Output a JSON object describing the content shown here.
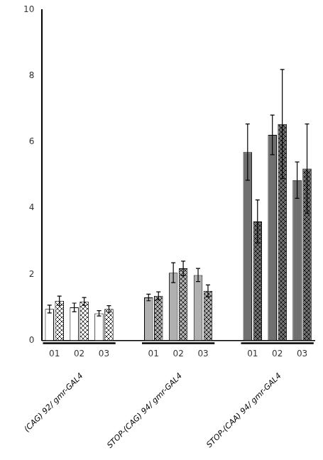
{
  "chart_data": {
    "type": "bar",
    "groups": [
      {
        "label": "(CAG) 92/ gmr-GAL4",
        "categories": [
          "01",
          "02",
          "03"
        ]
      },
      {
        "label": "STOP-(CAG) 94/ gmr-GAL4",
        "categories": [
          "01",
          "02",
          "03"
        ]
      },
      {
        "label": "STOP-(CAA) 94/ gmr-GAL4",
        "categories": [
          "01",
          "02",
          "03"
        ]
      }
    ],
    "series": [
      {
        "colors": [
          "white",
          "white",
          "white",
          "#b0b0b0",
          "#b0b0b0",
          "#b0b0b0",
          "#707070",
          "#707070",
          "#707070"
        ],
        "values": [
          0.95,
          1.0,
          0.82,
          1.3,
          2.05,
          1.98,
          5.7,
          6.22,
          4.85
        ],
        "errors": [
          0.12,
          0.13,
          0.08,
          0.1,
          0.3,
          0.2,
          0.85,
          0.6,
          0.55
        ]
      },
      {
        "colors": [
          "white",
          "white",
          "white",
          "#b0b0b0",
          "#b0b0b0",
          "#b0b0b0",
          "#707070",
          "#707070",
          "#707070"
        ],
        "values": [
          1.2,
          1.18,
          0.95,
          1.35,
          2.18,
          1.5,
          3.6,
          6.55,
          5.2
        ],
        "errors": [
          0.14,
          0.12,
          0.1,
          0.12,
          0.22,
          0.18,
          0.65,
          1.65,
          1.35
        ]
      }
    ],
    "ylim": [
      0,
      10
    ],
    "yticks": [
      0,
      2,
      4,
      6,
      8,
      10
    ],
    "grid": false
  }
}
